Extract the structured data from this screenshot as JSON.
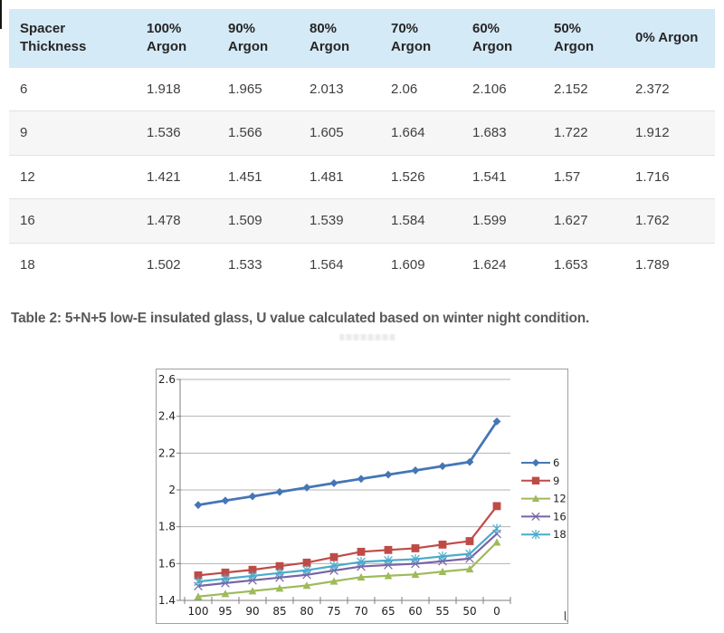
{
  "table": {
    "columns": [
      "Spacer Thickness",
      "100% Argon",
      "90% Argon",
      "80% Argon",
      "70% Argon",
      "60% Argon",
      "50% Argon",
      "0% Argon"
    ],
    "rows": [
      [
        "6",
        "1.918",
        "1.965",
        "2.013",
        "2.06",
        "2.106",
        "2.152",
        "2.372"
      ],
      [
        "9",
        "1.536",
        "1.566",
        "1.605",
        "1.664",
        "1.683",
        "1.722",
        "1.912"
      ],
      [
        "12",
        "1.421",
        "1.451",
        "1.481",
        "1.526",
        "1.541",
        "1.57",
        "1.716"
      ],
      [
        "16",
        "1.478",
        "1.509",
        "1.539",
        "1.584",
        "1.599",
        "1.627",
        "1.762"
      ],
      [
        "18",
        "1.502",
        "1.533",
        "1.564",
        "1.609",
        "1.624",
        "1.653",
        "1.789"
      ]
    ]
  },
  "caption": "Table 2: 5+N+5 low-E insulated glass, U value calculated based on winter night condition.",
  "colors": {
    "header_bg": "#d5eaf7",
    "alt_row_bg": "#f6f6f6",
    "row_border": "#e3e3e3",
    "caption_text": "#595959",
    "chart_border": "#9f9f9f",
    "grid": "#b3b3b3",
    "axis": "#7f7f7f",
    "axis_label": "#1f1f1f"
  },
  "chart_data": {
    "type": "line",
    "x": [
      "100",
      "95",
      "90",
      "85",
      "80",
      "75",
      "70",
      "65",
      "60",
      "55",
      "50",
      "0"
    ],
    "series": [
      {
        "name": "6",
        "color": "#4576b5",
        "marker": "diamond",
        "values": [
          1.918,
          1.942,
          1.965,
          1.989,
          2.013,
          2.037,
          2.06,
          2.083,
          2.106,
          2.129,
          2.152,
          2.372
        ]
      },
      {
        "name": "9",
        "color": "#bf4b47",
        "marker": "square",
        "values": [
          1.536,
          1.551,
          1.566,
          1.586,
          1.605,
          1.635,
          1.664,
          1.674,
          1.683,
          1.703,
          1.722,
          1.912
        ]
      },
      {
        "name": "12",
        "color": "#9fba5a",
        "marker": "triangle",
        "values": [
          1.421,
          1.436,
          1.451,
          1.466,
          1.481,
          1.504,
          1.526,
          1.534,
          1.541,
          1.556,
          1.57,
          1.716
        ]
      },
      {
        "name": "16",
        "color": "#7a62a5",
        "marker": "x",
        "values": [
          1.478,
          1.494,
          1.509,
          1.524,
          1.539,
          1.562,
          1.584,
          1.592,
          1.599,
          1.613,
          1.627,
          1.762
        ]
      },
      {
        "name": "18",
        "color": "#4aabcb",
        "marker": "asterisk",
        "values": [
          1.502,
          1.518,
          1.533,
          1.549,
          1.564,
          1.587,
          1.609,
          1.617,
          1.624,
          1.639,
          1.653,
          1.789
        ]
      }
    ],
    "ylim": [
      1.4,
      2.6
    ],
    "yticks": [
      "2.6",
      "2.4",
      "2.2",
      "2",
      "1.8",
      "1.6",
      "1.4"
    ],
    "grid": true,
    "legend_position": "right",
    "legend_labels": [
      "6",
      "9",
      "12",
      "16",
      "18"
    ]
  }
}
